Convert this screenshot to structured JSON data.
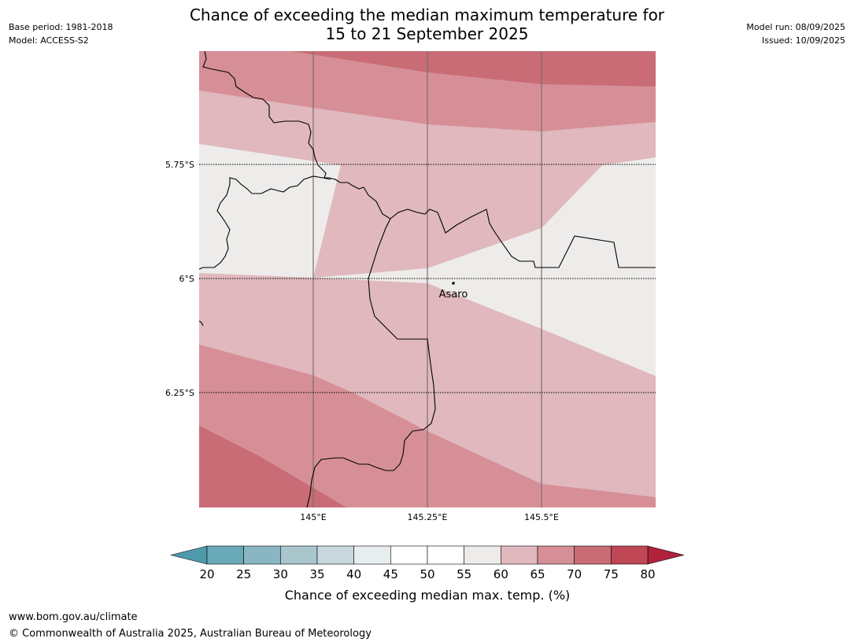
{
  "header": {
    "title_line1": "Chance of exceeding the median maximum temperature for",
    "title_line2": "15 to 21 September 2025",
    "base_period": "Base period: 1981-2018",
    "model": "Model: ACCESS-S2",
    "model_run": "Model run: 08/09/2025",
    "issued": "Issued: 10/09/2025"
  },
  "map": {
    "lat_labels": [
      "5.75°S",
      "6°S",
      "6.25°S"
    ],
    "lon_labels": [
      "145°E",
      "145.25°E",
      "145.5°E"
    ],
    "place": {
      "name": "Asaro",
      "lon": 145.29,
      "lat": -6.01
    },
    "colors": {
      "band_60_65": "#e0b8bd",
      "band_65_70": "#d68f97",
      "band_70_75": "#c96c76",
      "band_55_60": "#eeecea",
      "border": "#000000"
    }
  },
  "legend": {
    "title": "Chance of exceeding median max. temp. (%)",
    "ticks": [
      "20",
      "25",
      "30",
      "35",
      "40",
      "45",
      "50",
      "55",
      "60",
      "65",
      "70",
      "75",
      "80"
    ],
    "colors": [
      "#6aa9b8",
      "#8ab6c3",
      "#a9c6cd",
      "#c9d8dc",
      "#e8eeef",
      "#ffffff",
      "#ffffff",
      "#eeecea",
      "#e0b8bd",
      "#d68f97",
      "#c96c76",
      "#bf4756"
    ],
    "low_extend_color": "#4e9aab",
    "high_extend_color": "#b0213a"
  },
  "footer": {
    "url": "www.bom.gov.au/climate",
    "copyright": "© Commonwealth of Australia 2025, Australian Bureau of Meteorology"
  }
}
